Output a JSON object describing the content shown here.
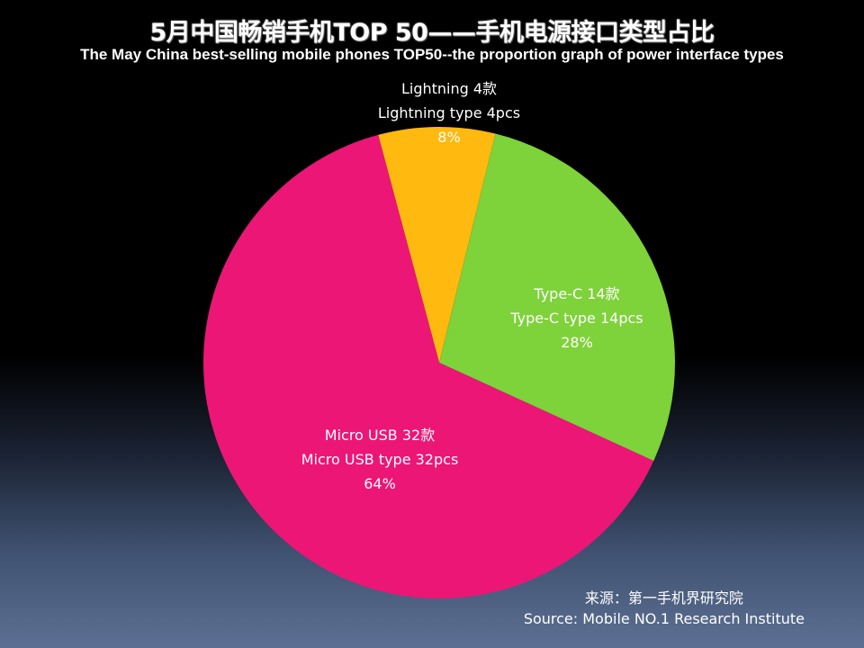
{
  "chart_data": {
    "type": "pie",
    "title": "5月中国畅销手机TOP 50——手机电源接口类型占比",
    "subtitle": "The May China best-selling mobile phones TOP50--the proportion graph of power interface types",
    "slices": [
      {
        "name": "Lightning",
        "value": 4,
        "percent": 8,
        "color": "#FFB90F",
        "label_lines": [
          "Lightning 4款",
          "Lightning type 4pcs",
          "8%"
        ]
      },
      {
        "name": "Type-C",
        "value": 14,
        "percent": 28,
        "color": "#7ED23A",
        "label_lines": [
          "Type-C 14款",
          "Type-C type 14pcs",
          "28%"
        ]
      },
      {
        "name": "Micro USB",
        "value": 32,
        "percent": 64,
        "color": "#EC1677",
        "label_lines": [
          "Micro USB 32款",
          "Micro USB type 32pcs",
          "64%"
        ]
      }
    ]
  },
  "source": {
    "cn": "来源：第一手机界研究院",
    "en": "Source: Mobile NO.1 Research Institute"
  }
}
